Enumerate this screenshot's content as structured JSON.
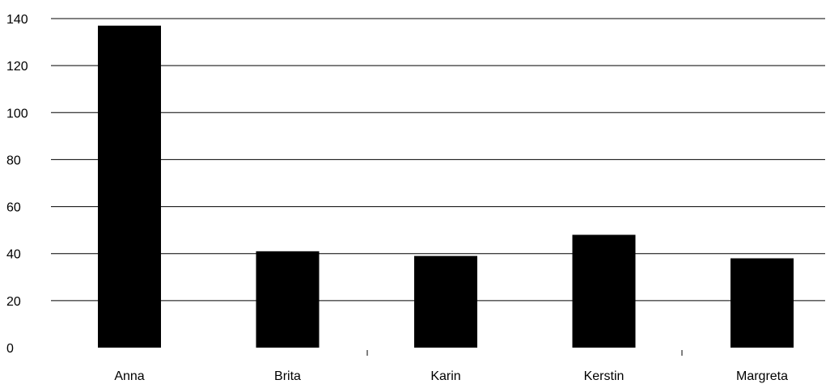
{
  "chart_data": {
    "type": "bar",
    "title": "",
    "xlabel": "",
    "ylabel": "",
    "categories": [
      "Anna",
      "Brita",
      "Karin",
      "Kerstin",
      "Margreta"
    ],
    "values": [
      137,
      41,
      39,
      48,
      38
    ],
    "ylim": [
      0,
      140
    ],
    "yticks": [
      "0",
      "20",
      "40",
      "60",
      "80",
      "100",
      "120",
      "140"
    ],
    "grid": true,
    "legend": "none",
    "bar_color": "#000000"
  }
}
